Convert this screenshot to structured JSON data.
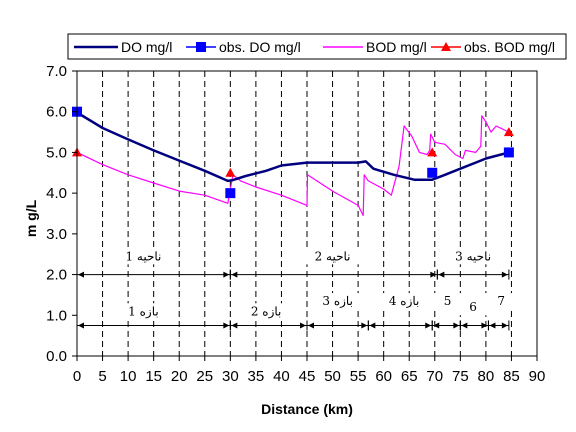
{
  "chart_data": {
    "type": "line",
    "xlabel": "Distance (km)",
    "ylabel": "m g/L",
    "xlim": [
      0,
      90
    ],
    "ylim": [
      0,
      7
    ],
    "xticks": [
      "0",
      "5",
      "10",
      "15",
      "20",
      "25",
      "30",
      "35",
      "40",
      "45",
      "50",
      "55",
      "60",
      "65",
      "70",
      "75",
      "80",
      "85",
      "90"
    ],
    "yticks": [
      "0.0",
      "1.0",
      "2.0",
      "3.0",
      "4.0",
      "5.0",
      "6.0",
      "7.0"
    ],
    "grid": "vertical dashed",
    "legend_position": "top",
    "colors": {
      "do": "#00007f",
      "obs_do": "#0000ff",
      "bod": "#ff00ff",
      "obs_bod": "#ff0000",
      "text": "#000000"
    },
    "series": [
      {
        "name": "DO mg/l",
        "kind": "line",
        "x": [
          0,
          5,
          10,
          15,
          20,
          25,
          29.5,
          30.5,
          33,
          37,
          40,
          45,
          50,
          55,
          56.5,
          58,
          62,
          66,
          69.5,
          72,
          75,
          78,
          80,
          83,
          84.5
        ],
        "y": [
          5.98,
          5.6,
          5.32,
          5.05,
          4.8,
          4.55,
          4.3,
          4.32,
          4.42,
          4.55,
          4.68,
          4.75,
          4.75,
          4.75,
          4.78,
          4.6,
          4.45,
          4.33,
          4.33,
          4.45,
          4.6,
          4.75,
          4.85,
          4.95,
          5.0
        ]
      },
      {
        "name": "obs. DO mg/l",
        "kind": "marker",
        "x": [
          0,
          30,
          69.5,
          84.5
        ],
        "y": [
          6.0,
          4.0,
          4.5,
          5.0
        ]
      },
      {
        "name": "BOD mg/l",
        "kind": "line",
        "x": [
          0,
          5,
          10,
          15,
          20,
          25,
          29.5,
          30.5,
          32,
          35,
          40,
          45,
          45.1,
          50,
          55,
          56,
          56.2,
          57,
          60,
          61.5,
          63,
          64,
          65.5,
          67,
          68.5,
          69,
          69.2,
          70,
          72,
          74,
          75.5,
          76,
          78,
          79,
          79.2,
          80,
          81,
          82,
          84.5
        ],
        "y": [
          5.0,
          4.7,
          4.45,
          4.25,
          4.05,
          3.95,
          3.75,
          4.45,
          4.3,
          4.15,
          3.95,
          3.7,
          4.45,
          4.05,
          3.7,
          3.45,
          4.45,
          4.3,
          4.1,
          3.95,
          4.65,
          5.65,
          5.4,
          5.0,
          4.95,
          5.05,
          5.45,
          5.25,
          5.2,
          4.95,
          4.85,
          5.05,
          5.0,
          5.15,
          5.9,
          5.75,
          5.5,
          5.65,
          5.5
        ]
      },
      {
        "name": "obs. BOD mg/l",
        "kind": "marker",
        "x": [
          0,
          30,
          69.5,
          84.5
        ],
        "y": [
          5.0,
          4.5,
          5.0,
          5.5
        ]
      }
    ],
    "zones": [
      {
        "label": "ناحیه 1",
        "x_start": 0,
        "x_end": 30,
        "y": 2.0,
        "label_x": 13
      },
      {
        "label": "ناحیه 2",
        "x_start": 30,
        "x_end": 70.5,
        "y": 2.0,
        "label_x": 50
      },
      {
        "label": "ناحیه 3",
        "x_start": 70.5,
        "x_end": 84.5,
        "y": 2.0,
        "label_x": 77.5
      }
    ],
    "reaches": [
      {
        "label": "بازه 1",
        "x_start": 0,
        "x_end": 30,
        "y": 0.75,
        "label_x": 13,
        "label_y": 1.0
      },
      {
        "label": "بازه 2",
        "x_start": 30,
        "x_end": 45,
        "y": 0.75,
        "label_x": 37,
        "label_y": 1.0
      },
      {
        "label": "بازه 3",
        "x_start": 45,
        "x_end": 57,
        "y": 0.75,
        "label_x": 51,
        "label_y": 1.25
      },
      {
        "label": "بازه 4",
        "x_start": 57,
        "x_end": 69.5,
        "y": 0.75,
        "label_x": 64,
        "label_y": 1.25
      },
      {
        "label": "5",
        "x_start": 69.5,
        "x_end": 75,
        "y": 0.75,
        "label_x": 72.5,
        "label_y": 1.25
      },
      {
        "label": "6",
        "x_start": 75,
        "x_end": 80.5,
        "y": 0.75,
        "label_x": 77.5,
        "label_y": 1.1
      },
      {
        "label": "7",
        "x_start": 80.5,
        "x_end": 84.5,
        "y": 0.75,
        "label_x": 83,
        "label_y": 1.25
      }
    ]
  }
}
